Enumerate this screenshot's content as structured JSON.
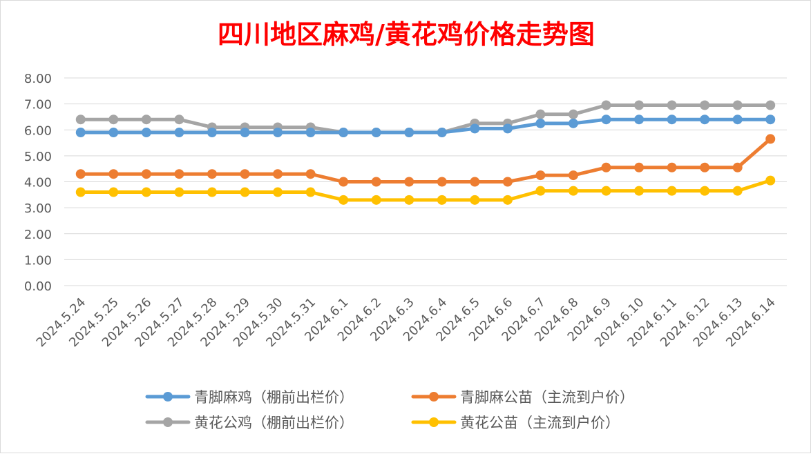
{
  "chart_data": {
    "type": "line",
    "title": "四川地区麻鸡/黄花鸡价格走势图",
    "title_color": "#FF0000",
    "xlabel": "",
    "ylabel": "",
    "ylim": [
      0,
      8
    ],
    "y_ticks": [
      "0.00",
      "1.00",
      "2.00",
      "3.00",
      "4.00",
      "5.00",
      "6.00",
      "7.00",
      "8.00"
    ],
    "grid": true,
    "legend_position": "bottom",
    "categories": [
      "2024.5.24",
      "2024.5.25",
      "2024.5.26",
      "2024.5.27",
      "2024.5.28",
      "2024.5.29",
      "2024.5.30",
      "2024.5.31",
      "2024.6.1",
      "2024.6.2",
      "2024.6.3",
      "2024.6.4",
      "2024.6.5",
      "2024.6.6",
      "2024.6.7",
      "2024.6.8",
      "2024.6.9",
      "2024.6.10",
      "2024.6.11",
      "2024.6.12",
      "2024.6.13",
      "2024.6.14"
    ],
    "series": [
      {
        "name": "青脚麻鸡（棚前出栏价）",
        "color": "#5B9BD5",
        "values": [
          5.9,
          5.9,
          5.9,
          5.9,
          5.9,
          5.9,
          5.9,
          5.9,
          5.9,
          5.9,
          5.9,
          5.9,
          6.05,
          6.05,
          6.25,
          6.25,
          6.4,
          6.4,
          6.4,
          6.4,
          6.4,
          6.4
        ]
      },
      {
        "name": "青脚麻公苗（主流到户价）",
        "color": "#ED7D31",
        "values": [
          4.3,
          4.3,
          4.3,
          4.3,
          4.3,
          4.3,
          4.3,
          4.3,
          4.0,
          4.0,
          4.0,
          4.0,
          4.0,
          4.0,
          4.25,
          4.25,
          4.55,
          4.55,
          4.55,
          4.55,
          4.55,
          5.65
        ]
      },
      {
        "name": "黄花公鸡（棚前出栏价）",
        "color": "#A5A5A5",
        "values": [
          6.4,
          6.4,
          6.4,
          6.4,
          6.1,
          6.1,
          6.1,
          6.1,
          5.9,
          5.9,
          5.9,
          5.9,
          6.25,
          6.25,
          6.6,
          6.6,
          6.95,
          6.95,
          6.95,
          6.95,
          6.95,
          6.95
        ]
      },
      {
        "name": "黄花公苗（主流到户价）",
        "color": "#FFC000",
        "values": [
          3.6,
          3.6,
          3.6,
          3.6,
          3.6,
          3.6,
          3.6,
          3.6,
          3.3,
          3.3,
          3.3,
          3.3,
          3.3,
          3.3,
          3.65,
          3.65,
          3.65,
          3.65,
          3.65,
          3.65,
          3.65,
          4.05
        ]
      }
    ],
    "legend": {
      "rows": [
        [
          "青脚麻鸡（棚前出栏价）",
          "青脚麻公苗（主流到户价）"
        ],
        [
          "黄花公鸡（棚前出栏价）",
          "黄花公苗（主流到户价）"
        ]
      ]
    },
    "colors": {
      "grid": "#D9D9D9",
      "axis_text": "#595959"
    }
  }
}
